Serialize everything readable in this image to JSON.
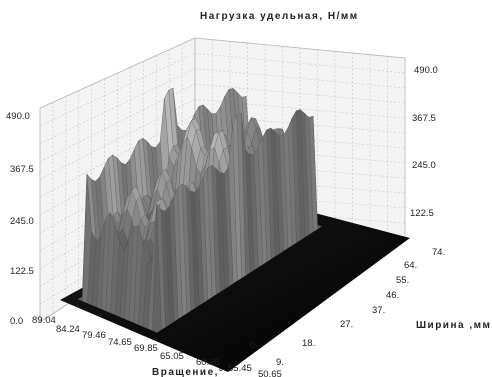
{
  "chart_data": {
    "type": "surface-3d",
    "title": "Нагрузка удельная, Н/мм",
    "xlabel": "Вращение,°",
    "ylabel": "Ширина ,мм",
    "zlabel": "Нагрузка удельная, Н/мм",
    "z_ticks": [
      "0.0",
      "122.5",
      "245.0",
      "367.5",
      "490.0"
    ],
    "x_ticks": [
      "89.04",
      "84.24",
      "79.46",
      "74.65",
      "69.85",
      "65.05",
      "60.25",
      "55.45",
      "50.65"
    ],
    "y_ticks": [
      "0.",
      "9.",
      "18.",
      "27.",
      "37.",
      "46.",
      "55.",
      "64.",
      "74."
    ],
    "zlim": [
      0,
      490
    ],
    "grid": true,
    "colormap": "grayscale"
  }
}
